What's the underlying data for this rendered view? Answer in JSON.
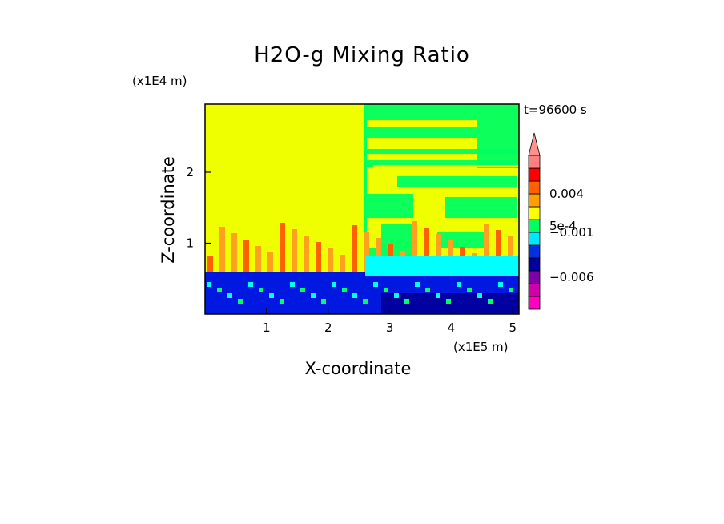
{
  "chart_data": {
    "type": "heatmap",
    "title": "H2O-g Mixing Ratio",
    "xlabel": "X-coordinate",
    "ylabel": "Z-coordinate",
    "x_unit": "(x1E5 m)",
    "y_unit": "(x1E4 m)",
    "time_label": "t=96600 s",
    "xlim": [
      0,
      5.1
    ],
    "ylim": [
      0,
      2.96
    ],
    "x_ticks": [
      1,
      2,
      3,
      4,
      5
    ],
    "y_ticks": [
      1,
      2
    ],
    "colorbar": {
      "levels": [
        "#ff00c0",
        "#d000a8",
        "#8000a8",
        "#0000a0",
        "#0030e0",
        "#00e8ff",
        "#00ff60",
        "#ffff00",
        "#ffa000",
        "#ff6000",
        "#ff0000",
        "#ff8080"
      ],
      "extend_top": "#ff9090",
      "tick_labels": [
        {
          "label": "0.004",
          "level_edge": 9
        },
        {
          "label": "5e-4",
          "level_edge": 6.5
        },
        {
          "label": "−0.001",
          "level_edge": 6
        },
        {
          "label": "−0.006",
          "level_edge": 2.5
        }
      ]
    }
  },
  "colors": {
    "yellow": "#f0ff00",
    "green": "#00ff60",
    "cyan": "#00ffff",
    "orange": "#ffa020",
    "red_orange": "#ff6000",
    "blue": "#0018e0",
    "dark_blue": "#0000a0"
  }
}
